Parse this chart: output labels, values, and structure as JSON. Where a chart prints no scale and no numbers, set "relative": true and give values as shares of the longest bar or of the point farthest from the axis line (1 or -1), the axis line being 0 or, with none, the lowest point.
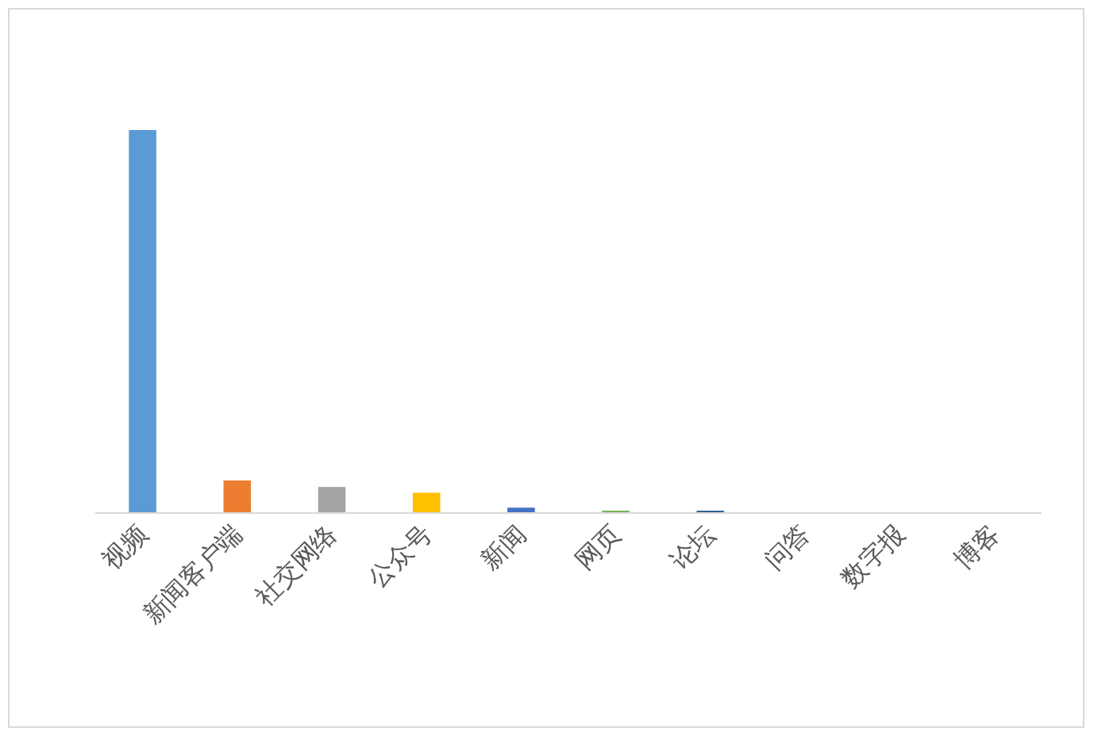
{
  "chart_data": {
    "type": "bar",
    "relative": true,
    "categories": [
      "视频",
      "新闻客户端",
      "社交网络",
      "公众号",
      "新闻",
      "网页",
      "论坛",
      "问答",
      "数字报",
      "博客"
    ],
    "values": [
      1,
      0.085,
      0.068,
      0.053,
      0.014,
      0.006,
      0.006,
      0,
      0,
      0
    ],
    "colors": [
      "#5b9bd5",
      "#ed7d31",
      "#a5a5a5",
      "#ffc000",
      "#4472c4",
      "#70ad47",
      "#255e91",
      "#9e480e",
      "#636363",
      "#997300"
    ],
    "orientation": "vertical"
  }
}
